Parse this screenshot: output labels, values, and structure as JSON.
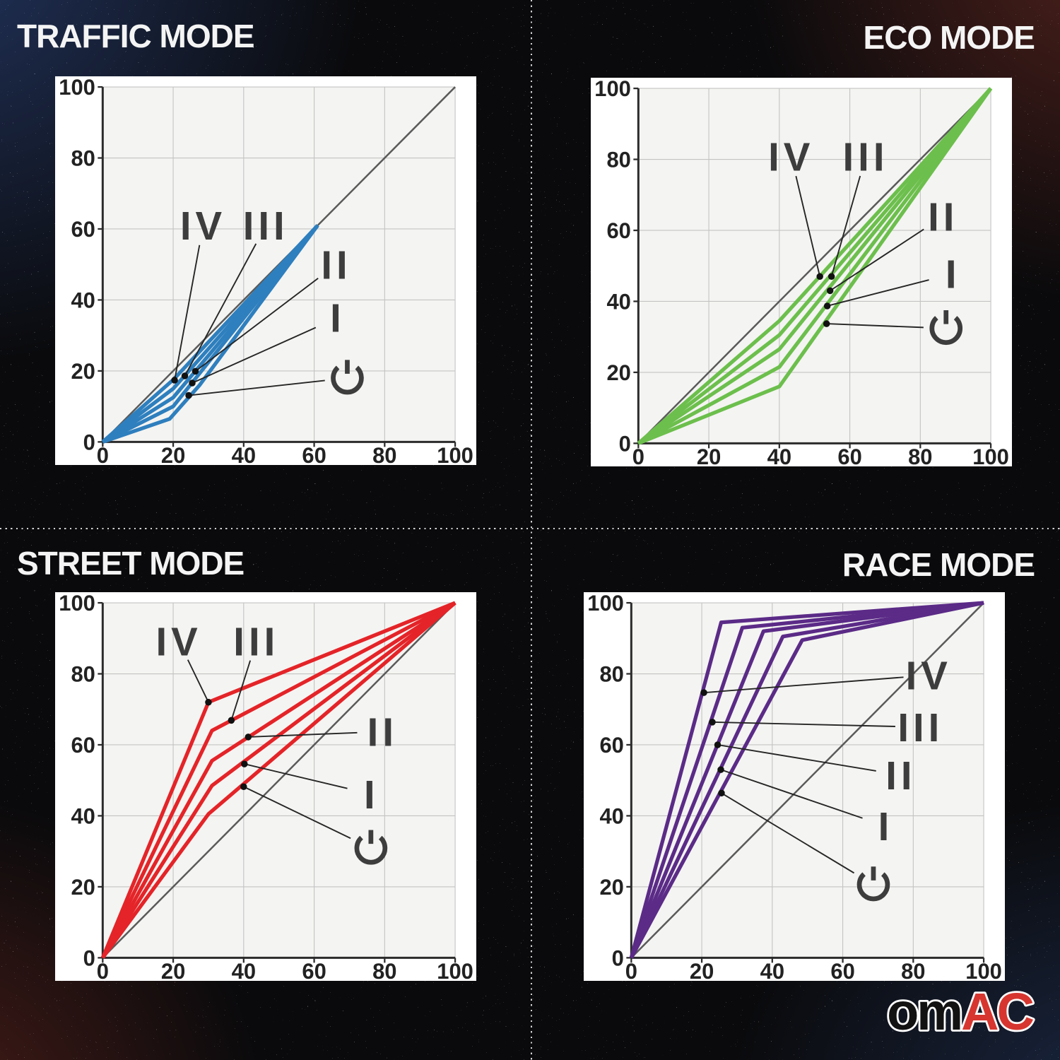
{
  "chart_style": {
    "panel_bg": "#ffffff",
    "plot_bg": "#f4f4f2",
    "grid": "#c3c3c3",
    "axis": "#2b2b2b",
    "tick_label": "#222222",
    "diagonal": "#5a5a5a",
    "leader": "#262626",
    "dot": "#111111",
    "gear_label": "#3d3d3d"
  },
  "chart_data": [
    {
      "id": "traffic",
      "title": "TRAFFIC MODE",
      "title_side": "left",
      "type": "line",
      "color": "#2e7fbe",
      "xlim": [
        0,
        100
      ],
      "ylim": [
        0,
        100
      ],
      "x_ticks": [
        0,
        20,
        40,
        60,
        80,
        100
      ],
      "y_ticks": [
        0,
        20,
        40,
        60,
        80,
        100
      ],
      "diagonal": [
        [
          0,
          0
        ],
        [
          100,
          100
        ]
      ],
      "series": [
        {
          "name": "IV",
          "points": [
            [
              0,
              0
            ],
            [
              20,
              17.5
            ],
            [
              61,
              61
            ]
          ]
        },
        {
          "name": "III",
          "points": [
            [
              0,
              0
            ],
            [
              20,
              15
            ],
            [
              61,
              61
            ]
          ]
        },
        {
          "name": "II",
          "points": [
            [
              0,
              0
            ],
            [
              20,
              12.5
            ],
            [
              61,
              61
            ]
          ]
        },
        {
          "name": "I",
          "points": [
            [
              0,
              0
            ],
            [
              20,
              10
            ],
            [
              61,
              61
            ]
          ]
        },
        {
          "name": "power",
          "points": [
            [
              0,
              0
            ],
            [
              19,
              6.5
            ],
            [
              27.5,
              16
            ],
            [
              61,
              61
            ]
          ]
        }
      ],
      "annotations": [
        {
          "label": "IV",
          "lx": 28.5,
          "ly": 61,
          "dot": [
            20.4,
            17.4
          ]
        },
        {
          "label": "III",
          "lx": 46.3,
          "ly": 61,
          "dot": [
            23.3,
            18.6
          ]
        },
        {
          "label": "II",
          "lx": 66.3,
          "ly": 50,
          "dot": [
            26.3,
            19.9
          ]
        },
        {
          "label": "I",
          "lx": 66.7,
          "ly": 35,
          "dot": [
            25.4,
            16.6
          ]
        },
        {
          "label": "power",
          "lx": 69.4,
          "ly": 18,
          "dot": [
            24.4,
            13.1
          ]
        }
      ]
    },
    {
      "id": "eco",
      "title": "ECO MODE",
      "title_side": "right",
      "type": "line",
      "color": "#6cbf4c",
      "xlim": [
        0,
        100
      ],
      "ylim": [
        0,
        100
      ],
      "x_ticks": [
        0,
        20,
        40,
        60,
        80,
        100
      ],
      "y_ticks": [
        0,
        20,
        40,
        60,
        80,
        100
      ],
      "diagonal": [
        [
          0,
          0
        ],
        [
          100,
          100
        ]
      ],
      "series": [
        {
          "name": "IV",
          "points": [
            [
              0,
              0
            ],
            [
              40,
              34.5
            ],
            [
              100,
              100
            ]
          ]
        },
        {
          "name": "III",
          "points": [
            [
              0,
              0
            ],
            [
              40,
              30.5
            ],
            [
              100,
              100
            ]
          ]
        },
        {
          "name": "II",
          "points": [
            [
              0,
              0
            ],
            [
              40,
              26.5
            ],
            [
              100,
              100
            ]
          ]
        },
        {
          "name": "I",
          "points": [
            [
              0,
              0
            ],
            [
              40,
              21.5
            ],
            [
              100,
              100
            ]
          ]
        },
        {
          "name": "power",
          "points": [
            [
              0,
              0
            ],
            [
              40,
              16
            ],
            [
              100,
              100
            ]
          ]
        }
      ],
      "annotations": [
        {
          "label": "IV",
          "lx": 43.4,
          "ly": 80.8,
          "dot": [
            51.5,
            47
          ]
        },
        {
          "label": "III",
          "lx": 64.5,
          "ly": 80.8,
          "dot": [
            54.8,
            47
          ]
        },
        {
          "label": "II",
          "lx": 86.5,
          "ly": 63.9,
          "dot": [
            54.4,
            43
          ]
        },
        {
          "label": "I",
          "lx": 89.3,
          "ly": 47.8,
          "dot": [
            53.6,
            38.7
          ]
        },
        {
          "label": "power",
          "lx": 87.3,
          "ly": 32.4,
          "dot": [
            53.4,
            33.7
          ]
        }
      ]
    },
    {
      "id": "street",
      "title": "STREET MODE",
      "title_side": "left",
      "type": "line",
      "color": "#e42428",
      "xlim": [
        0,
        100
      ],
      "ylim": [
        0,
        100
      ],
      "x_ticks": [
        0,
        20,
        40,
        60,
        80,
        100
      ],
      "y_ticks": [
        0,
        20,
        40,
        60,
        80,
        100
      ],
      "diagonal": [
        [
          0,
          0
        ],
        [
          100,
          100
        ]
      ],
      "series": [
        {
          "name": "IV",
          "points": [
            [
              0,
              0
            ],
            [
              30,
              72
            ],
            [
              100,
              100
            ]
          ]
        },
        {
          "name": "III",
          "points": [
            [
              0,
              0
            ],
            [
              31,
              64
            ],
            [
              100,
              100
            ]
          ]
        },
        {
          "name": "II",
          "points": [
            [
              0,
              0
            ],
            [
              31,
              55.5
            ],
            [
              100,
              100
            ]
          ]
        },
        {
          "name": "I",
          "points": [
            [
              0,
              0
            ],
            [
              31,
              48.5
            ],
            [
              100,
              100
            ]
          ]
        },
        {
          "name": "power",
          "points": [
            [
              0,
              0
            ],
            [
              30,
              40.5
            ],
            [
              100,
              100
            ]
          ]
        }
      ],
      "annotations": [
        {
          "label": "IV",
          "lx": 21.6,
          "ly": 89.2,
          "dot": [
            30,
            72
          ]
        },
        {
          "label": "III",
          "lx": 43.6,
          "ly": 89.2,
          "dot": [
            36.5,
            66.9
          ]
        },
        {
          "label": "II",
          "lx": 79.4,
          "ly": 63.7,
          "dot": [
            41.3,
            62.2
          ]
        },
        {
          "label": "I",
          "lx": 76.3,
          "ly": 46.1,
          "dot": [
            40.2,
            54.6
          ]
        },
        {
          "label": "power",
          "lx": 76.1,
          "ly": 30.9,
          "dot": [
            40,
            48.2
          ]
        }
      ]
    },
    {
      "id": "race",
      "title": "RACE MODE",
      "title_side": "right",
      "type": "line",
      "color": "#5b2b87",
      "xlim": [
        0,
        100
      ],
      "ylim": [
        0,
        100
      ],
      "x_ticks": [
        0,
        20,
        40,
        60,
        80,
        100
      ],
      "y_ticks": [
        0,
        20,
        40,
        60,
        80,
        100
      ],
      "diagonal": [
        [
          0,
          0
        ],
        [
          100,
          100
        ]
      ],
      "series": [
        {
          "name": "IV",
          "points": [
            [
              0,
              0
            ],
            [
              25.5,
              94.5
            ],
            [
              100,
              100
            ]
          ]
        },
        {
          "name": "III",
          "points": [
            [
              0,
              0
            ],
            [
              31.5,
              93
            ],
            [
              100,
              100
            ]
          ]
        },
        {
          "name": "II",
          "points": [
            [
              0,
              0
            ],
            [
              37.5,
              92
            ],
            [
              100,
              100
            ]
          ]
        },
        {
          "name": "I",
          "points": [
            [
              0,
              0
            ],
            [
              43,
              90.5
            ],
            [
              100,
              100
            ]
          ]
        },
        {
          "name": "power",
          "points": [
            [
              0,
              0
            ],
            [
              48.5,
              89.5
            ],
            [
              100,
              100
            ]
          ]
        }
      ],
      "annotations": [
        {
          "label": "IV",
          "lx": 84.4,
          "ly": 79.6,
          "dot": [
            20.6,
            74.7
          ]
        },
        {
          "label": "III",
          "lx": 82.1,
          "ly": 65,
          "dot": [
            23,
            66.4
          ]
        },
        {
          "label": "II",
          "lx": 76.5,
          "ly": 51.5,
          "dot": [
            24.5,
            60
          ]
        },
        {
          "label": "I",
          "lx": 72.2,
          "ly": 37.1,
          "dot": [
            25.4,
            53
          ]
        },
        {
          "label": "power",
          "lx": 68.7,
          "ly": 20.6,
          "dot": [
            25.6,
            46.4
          ]
        }
      ]
    }
  ],
  "logo": {
    "om": "om",
    "ac": "AC",
    "om_color": "#121212",
    "ac_color": "#d6362f",
    "outline_color": "#ffffff"
  }
}
